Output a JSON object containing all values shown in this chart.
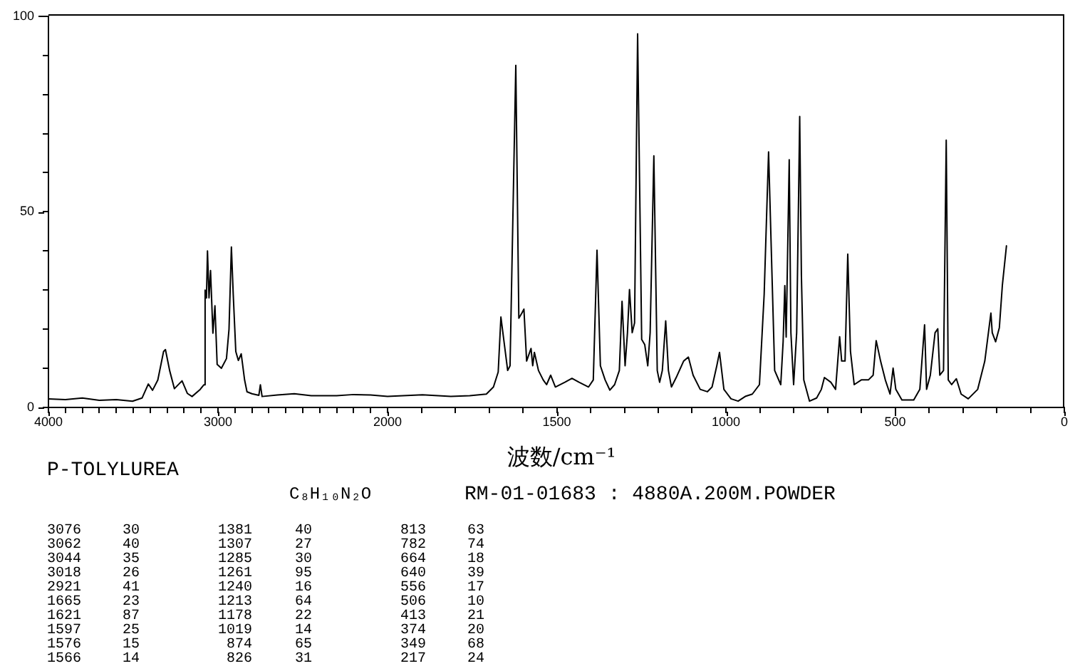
{
  "chart_data": [
    {
      "type": "line",
      "xlim": [
        4000,
        2000
      ],
      "xticks": [
        4000,
        {
          "value": 3900,
          "label": null
        },
        {
          "value": 3800,
          "label": null
        },
        {
          "value": 3700,
          "label": null
        },
        {
          "value": 3600,
          "label": null
        },
        {
          "value": 3500,
          "label": null
        },
        {
          "value": 3400,
          "label": null
        },
        {
          "value": 3300,
          "label": null
        },
        {
          "value": 3200,
          "label": null
        },
        {
          "value": 3100,
          "label": null
        },
        3000,
        {
          "value": 2900,
          "label": null
        },
        {
          "value": 2800,
          "label": null
        },
        {
          "value": 2700,
          "label": null
        },
        {
          "value": 2600,
          "label": null
        },
        {
          "value": 2500,
          "label": null
        },
        {
          "value": 2400,
          "label": null
        },
        {
          "value": 2300,
          "label": null
        },
        {
          "value": 2200,
          "label": null
        },
        {
          "value": 2100,
          "label": null
        }
      ],
      "ylim": [
        0,
        100
      ],
      "yticks": [
        0,
        {
          "value": 10,
          "label": null
        },
        {
          "value": 20,
          "label": null
        },
        {
          "value": 30,
          "label": null
        },
        {
          "value": 40,
          "label": null
        },
        50,
        {
          "value": 60,
          "label": null
        },
        {
          "value": 70,
          "label": null
        },
        {
          "value": 80,
          "label": null
        },
        {
          "value": 90,
          "label": null
        },
        100
      ],
      "marker": "none",
      "color": "#000000",
      "x": [
        4000,
        3900,
        3800,
        3700,
        3600,
        3504,
        3448,
        3411,
        3386,
        3355,
        3321,
        3310,
        3285,
        3257,
        3212,
        3181,
        3153,
        3105,
        3083,
        3076,
        3068,
        3062,
        3053,
        3044,
        3030,
        3018,
        3005,
        2980,
        2950,
        2935,
        2921,
        2910,
        2895,
        2880,
        2863,
        2843,
        2829,
        2800,
        2759,
        2750,
        2740,
        2650,
        2550,
        2450,
        2300,
        2200,
        2100,
        2000
      ],
      "values": [
        2.2,
        2.0,
        2.4,
        1.8,
        2.0,
        1.6,
        2.4,
        6.0,
        4.4,
        7.0,
        14.3,
        14.8,
        9.4,
        4.8,
        6.8,
        3.6,
        2.8,
        4.6,
        5.8,
        30,
        28,
        40,
        28,
        35,
        19,
        26,
        11,
        10,
        12.5,
        20,
        41,
        28.8,
        14.3,
        12,
        13.7,
        7,
        4,
        3.5,
        3.1,
        5.8,
        2.8,
        3.2,
        3.5,
        3.0,
        3.0,
        3.3,
        3.2,
        2.8
      ]
    },
    {
      "type": "line",
      "xlabel": "波数/cm⁻¹",
      "xlim": [
        2000,
        0
      ],
      "xticks": [
        2000,
        {
          "value": 1900,
          "label": null
        },
        {
          "value": 1800,
          "label": null
        },
        {
          "value": 1700,
          "label": null
        },
        {
          "value": 1600,
          "label": null
        },
        1500,
        {
          "value": 1400,
          "label": null
        },
        {
          "value": 1300,
          "label": null
        },
        {
          "value": 1200,
          "label": null
        },
        {
          "value": 1100,
          "label": null
        },
        1000,
        {
          "value": 900,
          "label": null
        },
        {
          "value": 800,
          "label": null
        },
        {
          "value": 700,
          "label": null
        },
        {
          "value": 600,
          "label": null
        },
        500,
        {
          "value": 400,
          "label": null
        },
        {
          "value": 300,
          "label": null
        },
        {
          "value": 200,
          "label": null
        },
        {
          "value": 100,
          "label": null
        },
        0
      ],
      "ylim": [
        0,
        100
      ],
      "tick_labels": "x",
      "marker": "none",
      "color": "#000000",
      "x": [
        2000,
        1897,
        1813,
        1757,
        1708,
        1687,
        1673,
        1665,
        1645,
        1638,
        1621,
        1612,
        1603,
        1597,
        1589,
        1576,
        1571,
        1566,
        1554,
        1540,
        1530,
        1518,
        1504,
        1476,
        1455,
        1434,
        1406,
        1392,
        1381,
        1371,
        1357,
        1343,
        1329,
        1315,
        1307,
        1298,
        1291,
        1285,
        1277,
        1270,
        1261,
        1249,
        1240,
        1231,
        1224,
        1213,
        1203,
        1196,
        1188,
        1178,
        1170,
        1161,
        1147,
        1125,
        1111,
        1097,
        1076,
        1055,
        1041,
        1027,
        1019,
        1006,
        985,
        964,
        943,
        922,
        901,
        887,
        874,
        863,
        856,
        838,
        831,
        826,
        822,
        813,
        808,
        800,
        791,
        782,
        777,
        770,
        753,
        732,
        718,
        709,
        690,
        676,
        664,
        658,
        648,
        640,
        632,
        621,
        600,
        579,
        565,
        556,
        543,
        529,
        515,
        506,
        498,
        480,
        445,
        427,
        413,
        407,
        396,
        382,
        374,
        368,
        357,
        349,
        343,
        333,
        319,
        305,
        284,
        256,
        235,
        217,
        213,
        203,
        192,
        183,
        171
      ],
      "values": [
        2.8,
        3.2,
        2.8,
        3.0,
        3.4,
        5.2,
        9,
        23,
        9.4,
        10.6,
        87,
        22.7,
        24,
        25,
        11.8,
        15,
        10.6,
        14,
        9.4,
        7,
        5.8,
        8.2,
        5.2,
        6.4,
        7.4,
        6.4,
        5.2,
        7,
        40,
        10.6,
        7,
        4.4,
        5.8,
        9.4,
        27,
        10.6,
        19,
        30,
        19,
        21.5,
        95,
        17.3,
        16,
        10.6,
        19,
        64,
        9.4,
        6.4,
        9.4,
        22,
        9.4,
        5.2,
        7.6,
        11.8,
        12.8,
        8.2,
        4.6,
        4.0,
        5.2,
        10.6,
        14,
        4.6,
        2.2,
        1.6,
        2.8,
        3.4,
        5.8,
        28.8,
        65,
        31,
        9.4,
        5.8,
        16.7,
        31,
        17.9,
        63,
        19,
        5.8,
        19,
        74,
        33.6,
        7,
        1.6,
        2.4,
        4.6,
        7.6,
        6.4,
        4.6,
        18,
        11.8,
        11.8,
        39,
        14.3,
        5.8,
        7,
        7,
        8.2,
        17,
        11.8,
        7,
        3.4,
        10,
        4.6,
        1.9,
        1.9,
        4.6,
        21,
        4.6,
        8.2,
        19,
        20,
        8.2,
        9.4,
        68,
        7,
        5.8,
        7.3,
        3.4,
        2.2,
        4.6,
        11.8,
        24,
        19,
        16.7,
        20.3,
        31.2,
        41.1
      ]
    },
    {
      "type": "other",
      "title": "P-TOLYLUREA",
      "subtitle": "C₈H₁₀N₂O",
      "annotations": [
        "RM-01-01683 : 4880A.200M.POWDER"
      ],
      "categories": [
        "3076",
        "3062",
        "3044",
        "3018",
        "2921",
        "1665",
        "1621",
        "1597",
        "1576",
        "1566",
        "1381",
        "1307",
        "1285",
        "1261",
        "1240",
        "1213",
        "1178",
        "1019",
        "874",
        "826",
        "813",
        "782",
        "664",
        "640",
        "556",
        "506",
        "413",
        "374",
        "349",
        "217"
      ],
      "values": [
        30,
        40,
        35,
        26,
        41,
        23,
        87,
        25,
        15,
        14,
        40,
        27,
        30,
        95,
        16,
        64,
        22,
        14,
        65,
        31,
        63,
        74,
        18,
        39,
        17,
        10,
        21,
        20,
        68,
        24
      ],
      "data_labels": true
    }
  ]
}
